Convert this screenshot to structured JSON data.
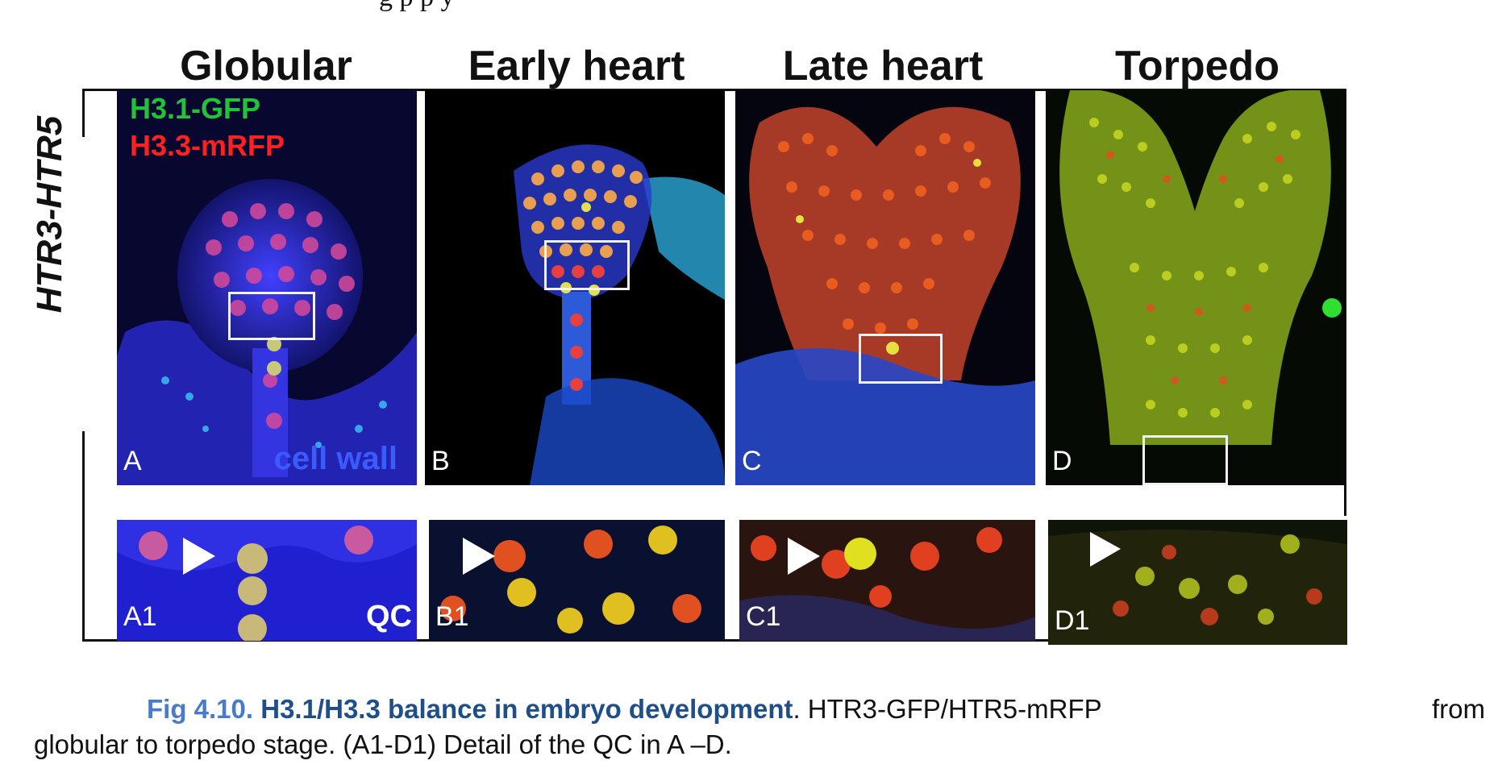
{
  "header_fragment": "g p                    p   y",
  "stages": [
    "Globular",
    "Early heart",
    "Late heart",
    "Torpedo"
  ],
  "row_label": "HTR3-HTR5",
  "legend": {
    "gfp": {
      "text": "H3.1-GFP",
      "color": "#22c23a"
    },
    "rfp": {
      "text": "H3.3-mRFP",
      "color": "#ff2020"
    }
  },
  "cell_wall_label": "cell wall",
  "qc_label": "QC",
  "panels_top": [
    "A",
    "B",
    "C",
    "D"
  ],
  "panels_bottom": [
    "A1",
    "B1",
    "C1",
    "D1"
  ],
  "caption": {
    "fig_number": "Fig 4.10.",
    "title": "H3.1/H3.3 balance in embryo development",
    "rest_line1_a": ". HTR3-GFP/HTR5-mRFP",
    "rest_line1_b": "from",
    "line2": "globular to torpedo stage. (A1-D1) Detail of the QC in A –D."
  }
}
